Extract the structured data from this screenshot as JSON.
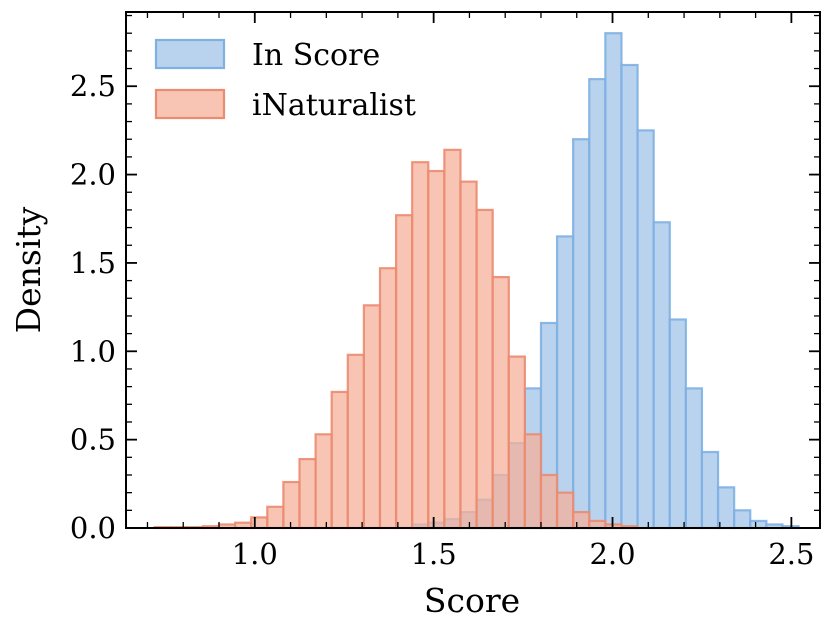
{
  "chart_data": {
    "type": "histogram",
    "title": "",
    "xlabel": "Score",
    "ylabel": "Density",
    "xlim": [
      0.64,
      2.58
    ],
    "ylim": [
      0,
      2.92
    ],
    "xticks": [
      1.0,
      1.5,
      2.0,
      2.5
    ],
    "xtick_labels": [
      "1.0",
      "1.5",
      "2.0",
      "2.5"
    ],
    "yticks": [
      0.0,
      0.5,
      1.0,
      1.5,
      2.0,
      2.5
    ],
    "ytick_labels": [
      "0.0",
      "0.5",
      "1.0",
      "1.5",
      "2.0",
      "2.5"
    ],
    "grid": false,
    "legend_position": "top-left",
    "bin_width": 0.045,
    "series": [
      {
        "name": "In Score",
        "fill": "#a7c8ea",
        "edge": "#7fb0e2",
        "opacity": 0.8,
        "bin_start": 1.44,
        "values": [
          0.02,
          0.03,
          0.05,
          0.09,
          0.16,
          0.3,
          0.48,
          0.79,
          1.16,
          1.65,
          2.2,
          2.54,
          2.8,
          2.62,
          2.25,
          1.73,
          1.18,
          0.79,
          0.43,
          0.23,
          0.1,
          0.04,
          0.02,
          0.01
        ]
      },
      {
        "name": "iNaturalist",
        "fill": "#f5b09b",
        "edge": "#eb8b70",
        "opacity": 0.75,
        "bin_start": 0.72,
        "values": [
          0.005,
          0.005,
          0.005,
          0.01,
          0.02,
          0.03,
          0.06,
          0.12,
          0.26,
          0.39,
          0.53,
          0.77,
          0.98,
          1.26,
          1.47,
          1.77,
          2.07,
          2.02,
          2.14,
          1.96,
          1.8,
          1.42,
          0.97,
          0.53,
          0.3,
          0.2,
          0.09,
          0.04,
          0.02,
          0.01
        ]
      }
    ]
  }
}
